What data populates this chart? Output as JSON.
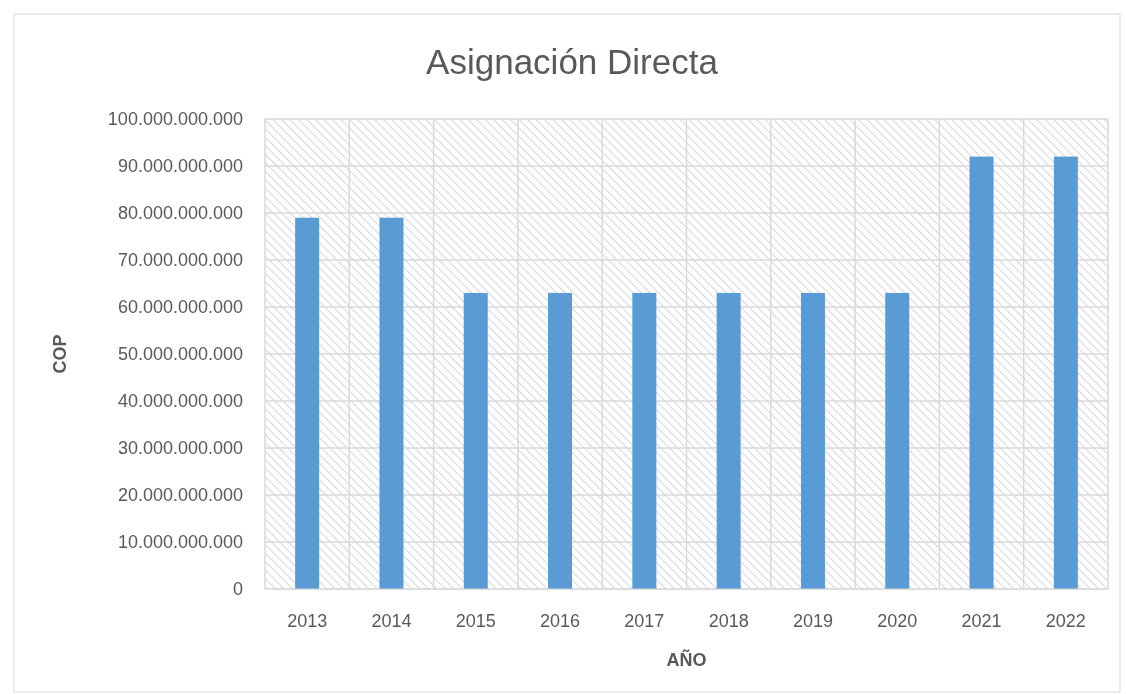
{
  "chart_data": {
    "type": "bar",
    "title": "Asignación Directa",
    "xlabel": "AÑO",
    "ylabel": "COP",
    "categories": [
      "2013",
      "2014",
      "2015",
      "2016",
      "2017",
      "2018",
      "2019",
      "2020",
      "2021",
      "2022"
    ],
    "values": [
      79000000000,
      79000000000,
      63000000000,
      63000000000,
      63000000000,
      63000000000,
      63000000000,
      63000000000,
      92000000000,
      92000000000
    ],
    "color": "#5b9bd5",
    "ylim": [
      0,
      100000000000
    ],
    "yticks": [
      0,
      {
        "value": 10000000000,
        "label": "10.000.000.000"
      },
      {
        "value": 20000000000,
        "label": "20.000.000.000"
      },
      {
        "value": 30000000000,
        "label": "30.000.000.000"
      },
      {
        "value": 40000000000,
        "label": "40.000.000.000"
      },
      {
        "value": 50000000000,
        "label": "50.000.000.000"
      },
      {
        "value": 60000000000,
        "label": "60.000.000.000"
      },
      {
        "value": 70000000000,
        "label": "70.000.000.000"
      },
      {
        "value": 80000000000,
        "label": "80.000.000.000"
      },
      {
        "value": 90000000000,
        "label": "90.000.000.000"
      },
      {
        "value": 100000000000,
        "label": "100.000.000.000"
      }
    ],
    "grid": true
  }
}
